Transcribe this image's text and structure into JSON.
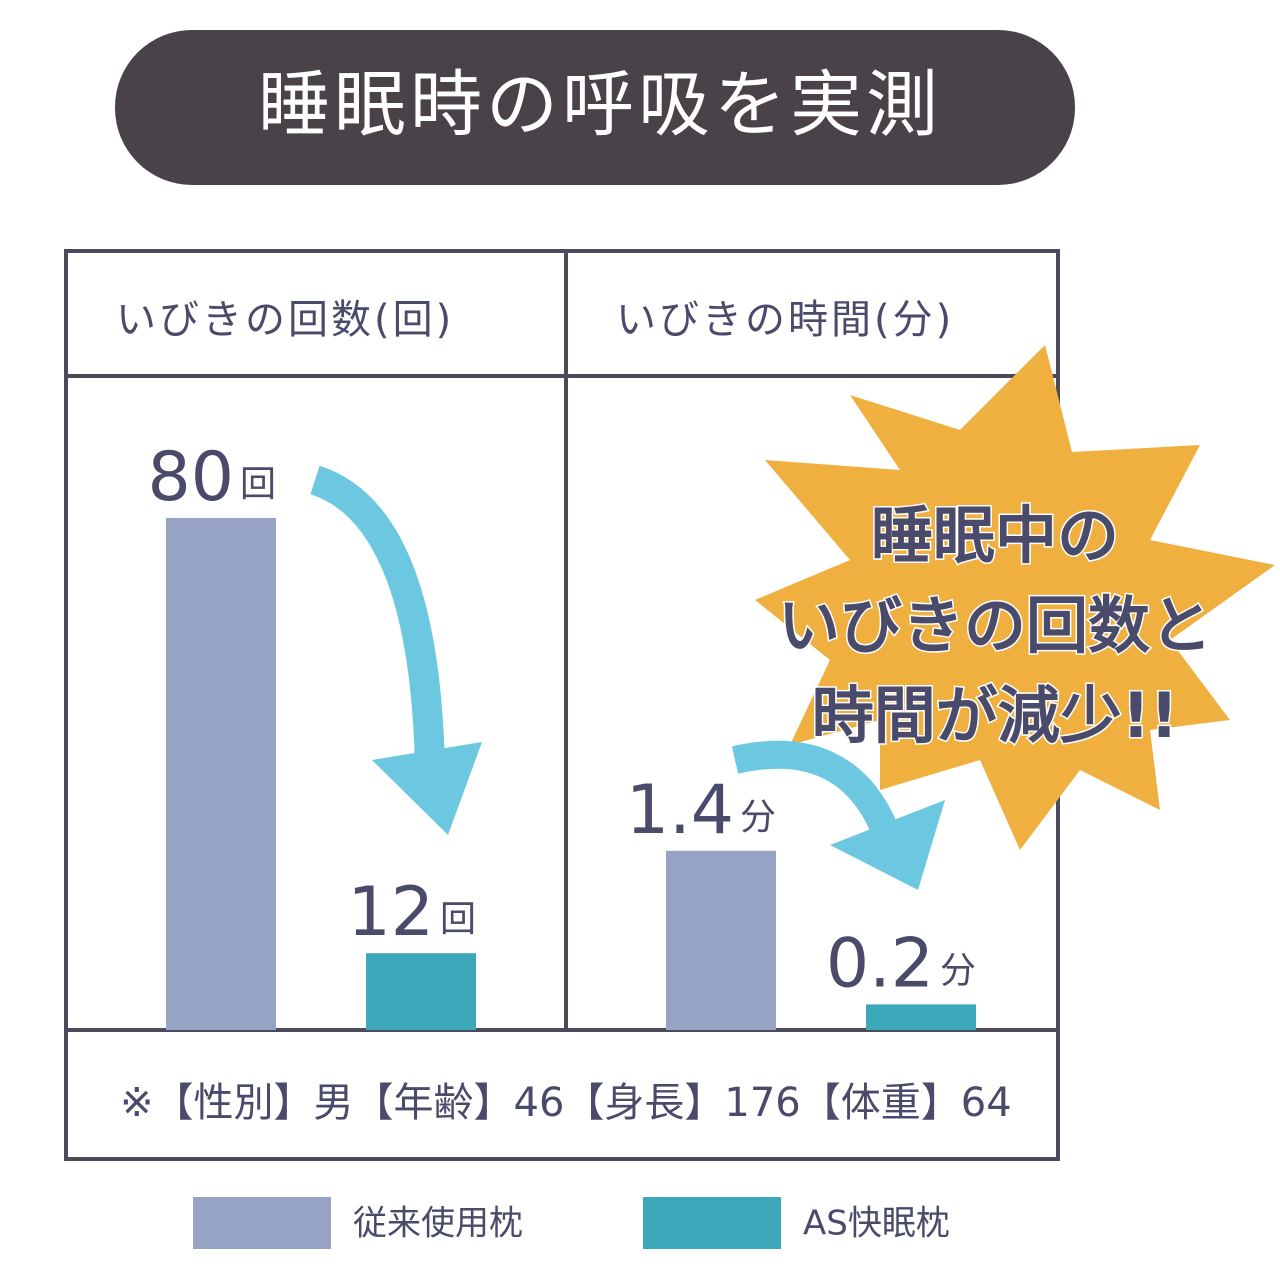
{
  "title": "睡眠時の呼吸を実測",
  "chart_data": [
    {
      "type": "bar",
      "title": "いびきの回数(回)",
      "unit": "回",
      "values": [
        80,
        12
      ],
      "ylim": [
        0,
        100
      ]
    },
    {
      "type": "bar",
      "title": "いびきの時間(分)",
      "unit": "分",
      "values": [
        1.4,
        0.2
      ],
      "ylim": [
        0,
        5
      ]
    }
  ],
  "legend": [
    {
      "name": "従来使用枕",
      "color": "#97a3c4"
    },
    {
      "name": "AS快眠枕",
      "color": "#3ea8bb"
    }
  ],
  "annotation": [
    "睡眠中の",
    "いびきの回数と",
    "時間が減少!!"
  ],
  "note": "※【性別】男【年齢】46【身長】176【体重】64"
}
